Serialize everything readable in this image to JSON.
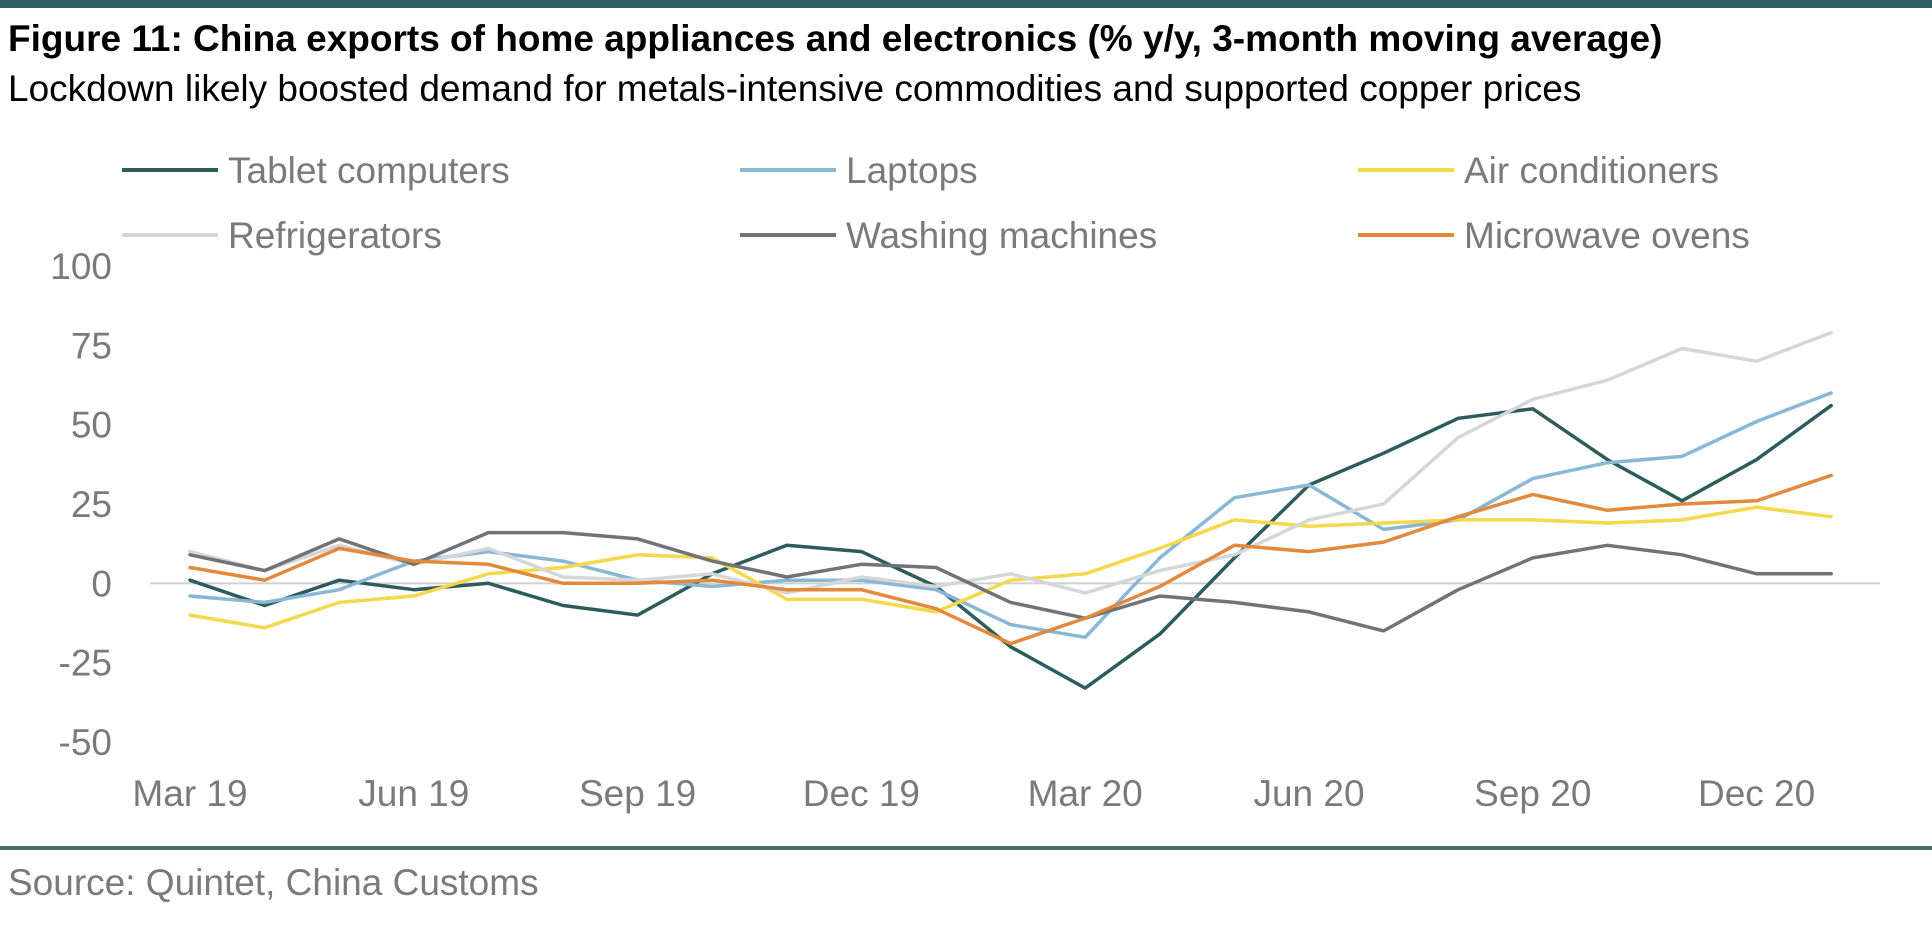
{
  "figure": {
    "title": "Figure 11: China exports of home appliances and electronics (% y/y, 3-month moving average)",
    "subtitle": "Lockdown likely boosted demand for metals-intensive commodities and supported copper prices",
    "source": "Source: Quintet, China Customs"
  },
  "chart_data": {
    "type": "line",
    "title": "Figure 11: China exports of home appliances and electronics (% y/y, 3-month moving average)",
    "subtitle": "Lockdown likely boosted demand for metals-intensive commodities and supported copper prices",
    "xlabel": "",
    "ylabel": "",
    "ylim": [
      -50,
      100
    ],
    "yticks": [
      "100",
      "75",
      "50",
      "25",
      "0",
      "-25",
      "-50"
    ],
    "ytick_values": [
      100,
      75,
      50,
      25,
      0,
      -25,
      -50
    ],
    "x": [
      "Mar 19",
      "Apr 19",
      "May 19",
      "Jun 19",
      "Jul 19",
      "Aug 19",
      "Sep 19",
      "Oct 19",
      "Nov 19",
      "Dec 19",
      "Jan 20",
      "Feb 20",
      "Mar 20",
      "Apr 20",
      "May 20",
      "Jun 20",
      "Jul 20",
      "Aug 20",
      "Sep 20",
      "Oct 20",
      "Nov 20",
      "Dec 20",
      "Jan 21"
    ],
    "xtick_labels": [
      "Mar 19",
      "Jun 19",
      "Sep 19",
      "Dec 19",
      "Mar 20",
      "Jun 20",
      "Sep 20",
      "Dec 20"
    ],
    "xtick_indices": [
      0,
      3,
      6,
      9,
      12,
      15,
      18,
      21
    ],
    "grid": false,
    "legend_position": "top",
    "series": [
      {
        "name": "Tablet computers",
        "color": "#2b5d5c",
        "values": [
          1,
          -7,
          1,
          -2,
          0,
          -7,
          -10,
          3,
          12,
          10,
          -1,
          -20,
          -33,
          -16,
          8,
          31,
          41,
          52,
          55,
          39,
          26,
          39,
          56
        ]
      },
      {
        "name": "Laptops",
        "color": "#88b8d6",
        "values": [
          -4,
          -6,
          -2,
          7,
          10,
          7,
          1,
          -1,
          1,
          1,
          -2,
          -13,
          -17,
          8,
          27,
          31,
          17,
          20,
          33,
          38,
          40,
          51,
          60
        ]
      },
      {
        "name": "Air conditioners",
        "color": "#f5d84c",
        "values": [
          -10,
          -14,
          -6,
          -4,
          3,
          5,
          9,
          8,
          -5,
          -5,
          -9,
          1,
          3,
          11,
          20,
          18,
          19,
          20,
          20,
          19,
          20,
          24,
          21
        ]
      },
      {
        "name": "Refrigerators",
        "color": "#d4d6d8",
        "values": [
          10,
          4,
          12,
          6,
          11,
          2,
          1,
          3,
          -3,
          2,
          -1,
          3,
          -3,
          4,
          9,
          20,
          25,
          46,
          58,
          64,
          74,
          70,
          79
        ]
      },
      {
        "name": "Washing machines",
        "color": "#707478",
        "values": [
          9,
          4,
          14,
          6,
          16,
          16,
          14,
          7,
          2,
          6,
          5,
          -6,
          -11,
          -4,
          -6,
          -9,
          -15,
          -2,
          8,
          12,
          9,
          3,
          3
        ]
      },
      {
        "name": "Microwave ovens",
        "color": "#e3893c",
        "values": [
          5,
          1,
          11,
          7,
          6,
          0,
          0,
          1,
          -2,
          -2,
          -8,
          -19,
          -11,
          -1,
          12,
          10,
          13,
          21,
          28,
          23,
          25,
          26,
          34
        ]
      }
    ]
  }
}
